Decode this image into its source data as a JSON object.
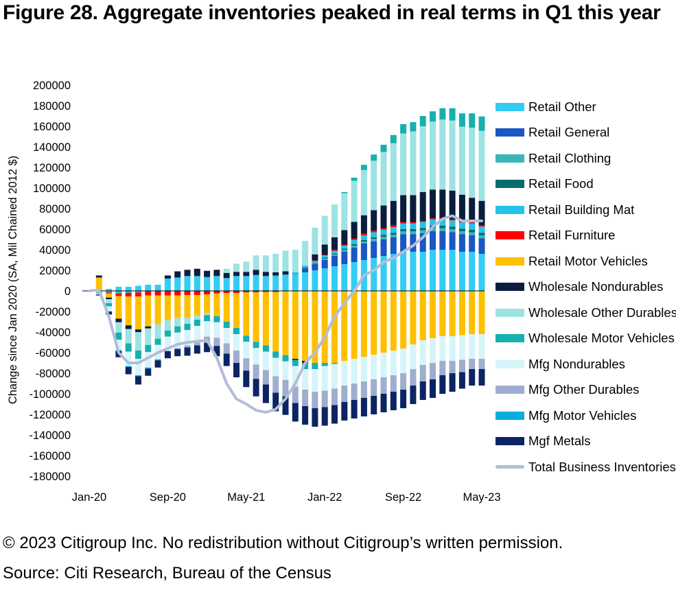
{
  "title": "Figure 28. Aggregate inventories peaked in real terms in Q1 this year",
  "copyright": "© 2023 Citigroup Inc. No redistribution without Citigroup’s written permission.",
  "source": "Source: Citi Research, Bureau of the Census",
  "chart_data": {
    "type": "bar",
    "stacked": true,
    "title": "Figure 28. Aggregate inventories peaked in real terms in Q1 this year",
    "ylabel": "Change since Jan 2020 (SA, Mil Chained 2012 $)",
    "xlabel": "",
    "ylim": [
      -180000,
      200000
    ],
    "yticks": [
      200000,
      180000,
      160000,
      140000,
      120000,
      100000,
      80000,
      60000,
      40000,
      20000,
      0,
      -20000,
      -40000,
      -60000,
      -80000,
      -100000,
      -120000,
      -140000,
      -160000,
      -180000
    ],
    "ytick_labels": [
      "200000",
      "180000",
      "160000",
      "140000",
      "120000",
      "100000",
      "80000",
      "60000",
      "40000",
      "20000",
      "0",
      "-20000",
      "-40000",
      "-60000",
      "-80000",
      "-100000",
      "-120000",
      "-140000",
      "-160000",
      "-180000"
    ],
    "xtick_labels": [
      {
        "index": 0,
        "label": "Jan-20"
      },
      {
        "index": 8,
        "label": "Sep-20"
      },
      {
        "index": 16,
        "label": "May-21"
      },
      {
        "index": 24,
        "label": "Jan-22"
      },
      {
        "index": 32,
        "label": "Sep-22"
      },
      {
        "index": 40,
        "label": "May-23"
      }
    ],
    "grid": false,
    "legend_position": "right",
    "categories": [
      "Jan-20",
      "Feb-20",
      "Mar-20",
      "Apr-20",
      "May-20",
      "Jun-20",
      "Jul-20",
      "Aug-20",
      "Sep-20",
      "Oct-20",
      "Nov-20",
      "Dec-20",
      "Jan-21",
      "Feb-21",
      "Mar-21",
      "Apr-21",
      "May-21",
      "Jun-21",
      "Jul-21",
      "Aug-21",
      "Sep-21",
      "Oct-21",
      "Nov-21",
      "Dec-21",
      "Jan-22",
      "Feb-22",
      "Mar-22",
      "Apr-22",
      "May-22",
      "Jun-22",
      "Jul-22",
      "Aug-22",
      "Sep-22",
      "Oct-22",
      "Nov-22",
      "Dec-22",
      "Jan-23",
      "Feb-23",
      "Mar-23",
      "Apr-23",
      "May-23"
    ],
    "series": [
      {
        "name": "Retail Other",
        "color": "#33ccf5",
        "values": [
          0,
          1000,
          2000,
          4000,
          4000,
          5000,
          6000,
          6000,
          12000,
          13000,
          14000,
          14000,
          13000,
          14000,
          12000,
          14000,
          14000,
          15000,
          14000,
          14000,
          15000,
          16000,
          18000,
          20000,
          22000,
          24000,
          26000,
          28000,
          30000,
          32000,
          34000,
          36000,
          38000,
          38000,
          38000,
          40000,
          40000,
          40000,
          38000,
          38000,
          36000
        ]
      },
      {
        "name": "Retail General",
        "color": "#1a56c4",
        "values": [
          0,
          0,
          0,
          0,
          0,
          0,
          0,
          0,
          0,
          0,
          0,
          0,
          0,
          0,
          0,
          0,
          0,
          0,
          0,
          0,
          0,
          0,
          4000,
          6000,
          8000,
          10000,
          12000,
          14000,
          16000,
          16000,
          16000,
          16000,
          17000,
          17000,
          18000,
          18000,
          18000,
          17000,
          17000,
          16000,
          15000
        ]
      },
      {
        "name": "Retail Clothing",
        "color": "#3ab5b8",
        "values": [
          0,
          -500,
          -1500,
          -2500,
          -2000,
          -1500,
          -500,
          0,
          0,
          0,
          500,
          500,
          500,
          500,
          500,
          500,
          500,
          500,
          500,
          1000,
          1000,
          1000,
          1000,
          1000,
          1500,
          1500,
          2000,
          2000,
          2000,
          2500,
          2500,
          2500,
          3000,
          3000,
          3000,
          3000,
          3000,
          3000,
          3000,
          3000,
          3000
        ]
      },
      {
        "name": "Retail Food",
        "color": "#0a6b6b",
        "values": [
          0,
          0,
          0,
          0,
          0,
          0,
          0,
          0,
          0,
          0,
          0,
          0,
          0,
          0,
          0,
          0,
          0,
          0,
          0,
          0,
          0,
          0,
          500,
          500,
          1000,
          1000,
          1000,
          1500,
          1500,
          1500,
          2000,
          2000,
          2000,
          2000,
          2000,
          2500,
          2500,
          2500,
          2500,
          2500,
          2500
        ]
      },
      {
        "name": "Retail Building Mat",
        "color": "#25c2ea",
        "values": [
          0,
          0,
          0,
          0,
          0,
          0,
          0,
          0,
          0,
          0,
          0,
          0,
          0,
          0,
          0,
          0,
          0,
          0,
          0,
          0,
          0,
          1000,
          1000,
          1500,
          2000,
          2500,
          3000,
          4000,
          4500,
          5000,
          5000,
          5500,
          5500,
          5500,
          6000,
          6000,
          6000,
          6000,
          6000,
          6000,
          6000
        ]
      },
      {
        "name": "Retail Furniture",
        "color": "#ff0000",
        "values": [
          0,
          0,
          -1000,
          -2500,
          -3500,
          -4000,
          -4000,
          -4500,
          -4500,
          -4500,
          -4000,
          -4000,
          -3500,
          -2500,
          -2000,
          -2000,
          -1500,
          -1500,
          -1000,
          -1000,
          -500,
          0,
          0,
          500,
          500,
          1000,
          1000,
          1500,
          1500,
          1500,
          1500,
          1500,
          1500,
          1500,
          1000,
          1000,
          1000,
          1000,
          1000,
          1000,
          1000
        ]
      },
      {
        "name": "Retail Motor Vehicles",
        "color": "#ffc000",
        "values": [
          0,
          12000,
          -4000,
          -22000,
          -28000,
          -32000,
          -30000,
          -28000,
          -24000,
          -22000,
          -22000,
          -20000,
          -18000,
          -22000,
          -28000,
          -34000,
          -42000,
          -48000,
          -52000,
          -58000,
          -62000,
          -66000,
          -68000,
          -70000,
          -70000,
          -70000,
          -68000,
          -66000,
          -64000,
          -62000,
          -60000,
          -58000,
          -56000,
          -52000,
          -48000,
          -46000,
          -44000,
          -44000,
          -43000,
          -42000,
          -42000
        ]
      },
      {
        "name": "Wholesale Nondurables",
        "color": "#0b1d3f",
        "values": [
          0,
          2000,
          -1500,
          -3500,
          -3500,
          -2500,
          -2000,
          0,
          3000,
          6000,
          6000,
          7000,
          6000,
          6000,
          5000,
          4000,
          4000,
          5000,
          4000,
          3000,
          3000,
          -1000,
          -2000,
          6000,
          10000,
          12000,
          14000,
          16000,
          18000,
          20000,
          22000,
          24000,
          26000,
          26000,
          28000,
          28000,
          28000,
          28000,
          26000,
          24000,
          24000
        ]
      },
      {
        "name": "Wholesale Other Durables",
        "color": "#9de3e3",
        "values": [
          0,
          -1000,
          -4000,
          -10000,
          -14000,
          -18000,
          -16000,
          -14000,
          -10000,
          -8000,
          -6000,
          -4000,
          -2000,
          0,
          4000,
          8000,
          10000,
          14000,
          16000,
          18000,
          20000,
          22000,
          24000,
          26000,
          28000,
          32000,
          36000,
          40000,
          44000,
          48000,
          52000,
          56000,
          60000,
          62000,
          64000,
          66000,
          68000,
          68000,
          66000,
          68000,
          68000
        ]
      },
      {
        "name": "Wholesale Motor Vehicles",
        "color": "#16b0ad",
        "values": [
          0,
          -1000,
          -3000,
          -7000,
          -8000,
          -8000,
          -7000,
          -6000,
          -6000,
          -6000,
          -6000,
          -6000,
          -6000,
          -6000,
          -6000,
          -6000,
          -6000,
          -6000,
          -6000,
          -6000,
          -6000,
          -6000,
          -6000,
          -6000,
          -3000,
          -1000,
          1000,
          3000,
          5000,
          6000,
          7000,
          8000,
          9000,
          9000,
          10000,
          10000,
          11000,
          12000,
          13000,
          14000,
          14000
        ]
      },
      {
        "name": "Mfg Nondurables",
        "color": "#d5f5fa",
        "values": [
          0,
          -1000,
          -5000,
          -10000,
          -14000,
          -16000,
          -15000,
          -14000,
          -14000,
          -15000,
          -15000,
          -15000,
          -15000,
          -15000,
          -15000,
          -16000,
          -16000,
          -16000,
          -18000,
          -18000,
          -18000,
          -20000,
          -20000,
          -22000,
          -24000,
          -24000,
          -24000,
          -24000,
          -24000,
          -24000,
          -24000,
          -24000,
          -24000,
          -24000,
          -24000,
          -24000,
          -24000,
          -24000,
          -24000,
          -24000,
          -24000
        ]
      },
      {
        "name": "Mfg Other Durables",
        "color": "#9fadce",
        "values": [
          0,
          0,
          0,
          0,
          0,
          0,
          0,
          0,
          0,
          -1000,
          -2000,
          -4000,
          -6000,
          -8000,
          -10000,
          -12000,
          -12000,
          -14000,
          -14000,
          -16000,
          -16000,
          -16000,
          -16000,
          -16000,
          -16000,
          -16000,
          -16000,
          -16000,
          -16000,
          -16000,
          -16000,
          -16000,
          -16000,
          -16000,
          -16000,
          -16000,
          -14000,
          -12000,
          -12000,
          -10000,
          -10000
        ]
      },
      {
        "name": "Mfg Motor Vehicles",
        "color": "#0aaed8",
        "values": [
          0,
          0,
          0,
          -1000,
          -1000,
          -1000,
          -1000,
          -1000,
          0,
          0,
          0,
          0,
          0,
          0,
          0,
          0,
          0,
          0,
          0,
          0,
          0,
          0,
          0,
          0,
          0,
          0,
          0,
          0,
          0,
          0,
          0,
          0,
          0,
          0,
          0,
          0,
          0,
          0,
          0,
          0,
          0
        ]
      },
      {
        "name": "Mgf Metals",
        "color": "#0b2563",
        "values": [
          0,
          -1000,
          -3000,
          -6000,
          -7000,
          -8000,
          -7000,
          -7000,
          -7000,
          -7000,
          -8000,
          -8000,
          -9000,
          -10000,
          -12000,
          -14000,
          -16000,
          -17000,
          -18000,
          -18000,
          -18000,
          -18000,
          -18000,
          -18000,
          -18000,
          -18000,
          -18000,
          -18000,
          -18000,
          -18000,
          -18000,
          -18000,
          -18000,
          -18000,
          -18000,
          -18000,
          -18000,
          -18000,
          -16000,
          -16000,
          -16000
        ]
      }
    ],
    "line": {
      "name": "Total Business Inventories",
      "color": "#b3bdd6",
      "values": [
        0,
        1000,
        -25000,
        -60000,
        -70000,
        -70000,
        -65000,
        -60000,
        -56000,
        -52000,
        -50000,
        -49000,
        -48000,
        -65000,
        -90000,
        -105000,
        -110000,
        -116000,
        -118000,
        -115000,
        -105000,
        -90000,
        -70000,
        -60000,
        -45000,
        -25000,
        -12000,
        0,
        15000,
        20000,
        28000,
        32000,
        38000,
        44000,
        52000,
        62000,
        70000,
        73000,
        68000,
        68000,
        68000
      ]
    },
    "legend": [
      "Retail Other",
      "Retail General",
      "Retail Clothing",
      "Retail Food",
      "Retail Building Mat",
      "Retail Furniture",
      "Retail Motor Vehicles",
      "Wholesale Nondurables",
      "Wholesale Other Durables",
      "Wholesale Motor Vehicles",
      "Mfg Nondurables",
      "Mfg Other Durables",
      "Mfg Motor Vehicles",
      "Mgf Metals",
      "Total Business Inventories"
    ]
  }
}
